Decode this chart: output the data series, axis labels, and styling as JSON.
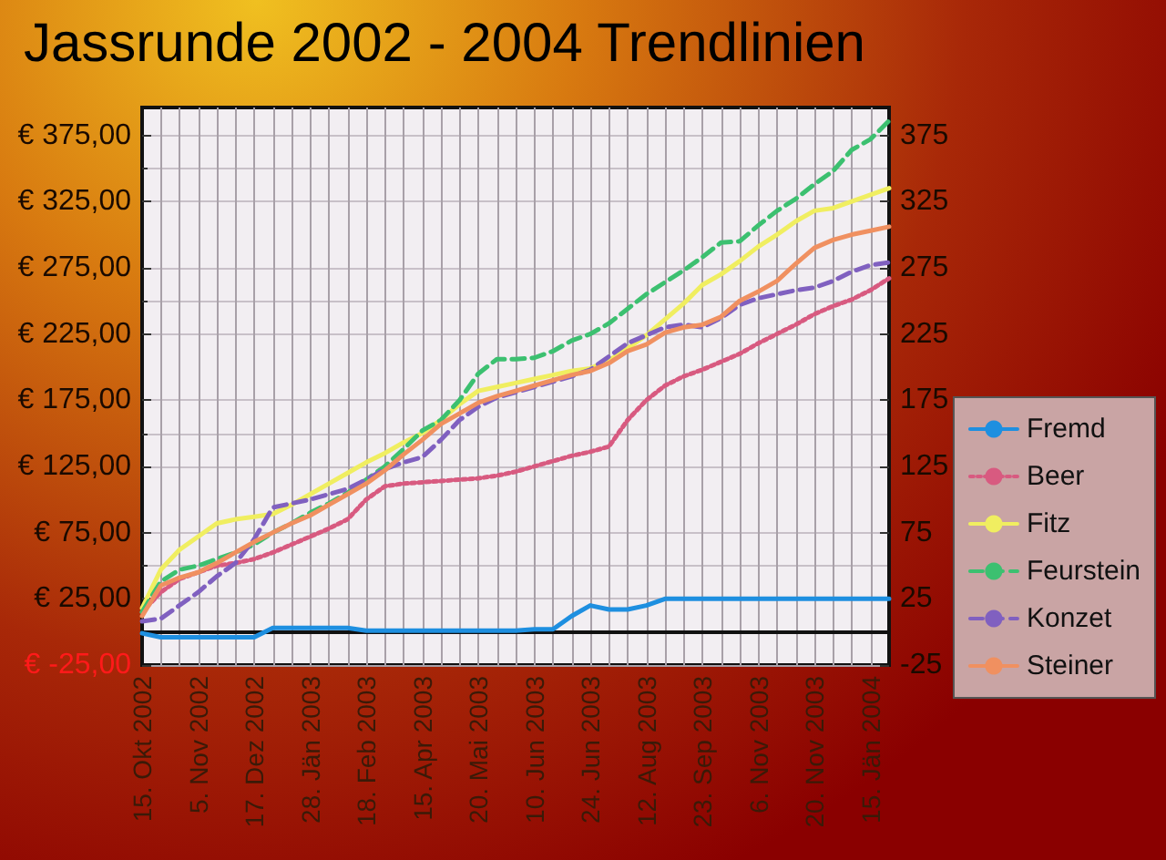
{
  "chart_data": {
    "type": "line",
    "title": "Jassrunde 2002 - 2004 Trendlinien",
    "categories": [
      "15. Okt 2002",
      null,
      null,
      "5. Nov 2002",
      null,
      null,
      "17. Dez 2002",
      null,
      null,
      "28. Jän 2003",
      null,
      null,
      "18. Feb 2003",
      null,
      null,
      "15. Apr 2003",
      null,
      null,
      "20. Mai 2003",
      null,
      null,
      "10. Jun 2003",
      null,
      null,
      "24. Jun 2003",
      null,
      null,
      "12. Aug 2003",
      null,
      null,
      "23. Sep 2003",
      null,
      null,
      "6. Nov 2003",
      null,
      null,
      "20. Nov 2003",
      null,
      null,
      "15. Jän 2004",
      null
    ],
    "series": [
      {
        "name": "Fremd",
        "color": "#1e8fe0",
        "line_style": "solid",
        "values": [
          -1,
          -4,
          -4,
          -4,
          -4,
          -4,
          -4,
          3,
          3,
          3,
          3,
          3,
          1,
          1,
          1,
          1,
          1,
          1,
          1,
          1,
          1,
          2,
          2,
          12,
          20,
          17,
          17,
          20,
          25,
          25,
          25,
          25,
          25,
          25,
          25,
          25,
          25,
          25,
          25,
          25,
          25
        ]
      },
      {
        "name": "Beer",
        "color": "#d85a80",
        "line_style": "dotted",
        "values": [
          15,
          30,
          40,
          45,
          50,
          52,
          55,
          60,
          66,
          72,
          78,
          85,
          100,
          110,
          112,
          113,
          114,
          115,
          116,
          118,
          121,
          125,
          129,
          133,
          136,
          140,
          160,
          175,
          186,
          193,
          198,
          204,
          210,
          218,
          225,
          232,
          240,
          246,
          251,
          258,
          267
        ]
      },
      {
        "name": "Fitz",
        "color": "#f0ee60",
        "line_style": "solid",
        "values": [
          18,
          47,
          62,
          72,
          82,
          85,
          87,
          89,
          96,
          104,
          112,
          120,
          128,
          135,
          143,
          150,
          160,
          172,
          182,
          185,
          188,
          191,
          194,
          197,
          199,
          205,
          214,
          224,
          236,
          248,
          262,
          270,
          280,
          291,
          300,
          310,
          318,
          320,
          325,
          330,
          335
        ]
      },
      {
        "name": "Feurstein",
        "color": "#3cc070",
        "line_style": "dashed",
        "values": [
          15,
          38,
          47,
          50,
          55,
          60,
          66,
          75,
          82,
          90,
          97,
          105,
          115,
          125,
          138,
          152,
          160,
          175,
          195,
          206,
          206,
          207,
          212,
          220,
          225,
          233,
          244,
          255,
          264,
          273,
          283,
          294,
          295,
          307,
          318,
          327,
          338,
          348,
          364,
          372,
          386
        ]
      },
      {
        "name": "Konzet",
        "color": "#8060c0",
        "line_style": "dashed",
        "values": [
          8,
          10,
          20,
          30,
          42,
          52,
          70,
          94,
          97,
          100,
          104,
          108,
          115,
          123,
          128,
          132,
          145,
          160,
          170,
          177,
          181,
          185,
          189,
          193,
          198,
          208,
          218,
          224,
          230,
          232,
          230,
          237,
          247,
          252,
          255,
          258,
          260,
          265,
          272,
          277,
          279
        ]
      },
      {
        "name": "Steiner",
        "color": "#f09060",
        "line_style": "solid",
        "values": [
          12,
          35,
          41,
          45,
          52,
          60,
          68,
          75,
          82,
          88,
          96,
          104,
          112,
          122,
          134,
          145,
          157,
          165,
          173,
          178,
          182,
          186,
          190,
          194,
          197,
          203,
          212,
          217,
          226,
          230,
          232,
          238,
          250,
          257,
          265,
          278,
          290,
          296,
          300,
          303,
          306
        ]
      }
    ],
    "ylim": [
      -25,
      396
    ],
    "yticks": [
      {
        "value": -25,
        "label": "€ -25,00"
      },
      {
        "value": 25,
        "label": "€ 25,00"
      },
      {
        "value": 75,
        "label": "€ 75,00"
      },
      {
        "value": 125,
        "label": "€ 125,00"
      },
      {
        "value": 175,
        "label": "€ 175,00"
      },
      {
        "value": 225,
        "label": "€ 225,00"
      },
      {
        "value": 275,
        "label": "€ 275,00"
      },
      {
        "value": 325,
        "label": "€ 325,00"
      },
      {
        "value": 375,
        "label": "€ 375,00"
      }
    ],
    "y2lim": [
      -25,
      396
    ],
    "y2ticks": [
      -25,
      25,
      75,
      125,
      175,
      225,
      275,
      325,
      375
    ],
    "grid": true,
    "legend": "right",
    "marker": "none"
  }
}
